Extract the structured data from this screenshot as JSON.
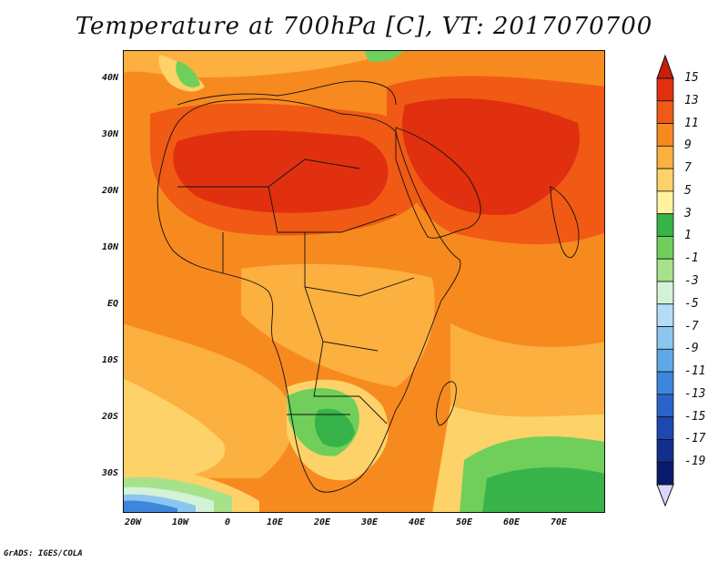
{
  "title": "Temperature at 700hPa [C], VT: 2017070700",
  "credit": "GrADS: IGES/COLA",
  "map": {
    "lat_labels": [
      "40N",
      "30N",
      "20N",
      "10N",
      "EQ",
      "10S",
      "20S",
      "30S"
    ],
    "lon_labels": [
      "20W",
      "10W",
      "0",
      "10E",
      "20E",
      "30E",
      "40E",
      "50E",
      "60E",
      "70E"
    ]
  },
  "colorbar": {
    "labels": [
      "15",
      "13",
      "11",
      "9",
      "7",
      "5",
      "3",
      "1",
      "-1",
      "-3",
      "-5",
      "-7",
      "-9",
      "-11",
      "-13",
      "-15",
      "-17",
      "-19"
    ],
    "colors": [
      "#e03010",
      "#f05a14",
      "#f78a1e",
      "#fbb040",
      "#fdd268",
      "#fff3a0",
      "#37b34a",
      "#6fcf5a",
      "#a6e28a",
      "#d2f3d6",
      "#b4dcf5",
      "#8cc6f0",
      "#5fa8e8",
      "#3c87dc",
      "#2a64c8",
      "#1c48b0",
      "#132f8c",
      "#0a1a6a"
    ]
  }
}
